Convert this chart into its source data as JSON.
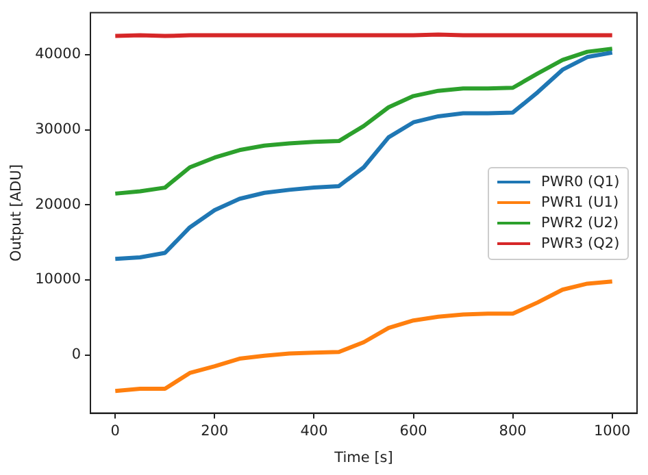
{
  "chart_data": {
    "type": "line",
    "xlabel": "Time [s]",
    "ylabel": "Output [ADU]",
    "x": [
      0,
      50,
      100,
      150,
      200,
      250,
      300,
      350,
      400,
      450,
      500,
      550,
      600,
      650,
      700,
      750,
      800,
      850,
      900,
      950,
      1000
    ],
    "series": [
      {
        "name": "PWR0 (Q1)",
        "color": "#1f77b4",
        "values": [
          12800,
          13000,
          13600,
          17000,
          19300,
          20800,
          21600,
          22000,
          22300,
          22500,
          25000,
          29000,
          31000,
          31800,
          32200,
          32200,
          32300,
          35000,
          38000,
          39700,
          40300
        ]
      },
      {
        "name": "PWR1 (U1)",
        "color": "#ff7f0e",
        "values": [
          -4800,
          -4500,
          -4500,
          -2400,
          -1500,
          -500,
          -100,
          200,
          300,
          400,
          1700,
          3600,
          4600,
          5100,
          5400,
          5500,
          5500,
          7000,
          8700,
          9500,
          9800
        ]
      },
      {
        "name": "PWR2 (U2)",
        "color": "#2ca02c",
        "values": [
          21500,
          21800,
          22300,
          25000,
          26300,
          27300,
          27900,
          28200,
          28400,
          28500,
          30500,
          33000,
          34500,
          35200,
          35500,
          35500,
          35600,
          37500,
          39300,
          40400,
          40800
        ]
      },
      {
        "name": "PWR3 (Q2)",
        "color": "#d62728",
        "values": [
          42500,
          42600,
          42500,
          42600,
          42600,
          42600,
          42600,
          42600,
          42600,
          42600,
          42600,
          42600,
          42600,
          42700,
          42600,
          42600,
          42600,
          42600,
          42600,
          42600,
          42600
        ]
      }
    ],
    "xlim": [
      -50,
      1050
    ],
    "xticks": [
      0,
      200,
      400,
      600,
      800,
      1000
    ],
    "ylim": [
      -7750,
      45600
    ],
    "yticks": [
      0,
      10000,
      20000,
      30000,
      40000
    ],
    "grid": false,
    "legend": "right",
    "marker": "none",
    "line_style": "solid"
  }
}
